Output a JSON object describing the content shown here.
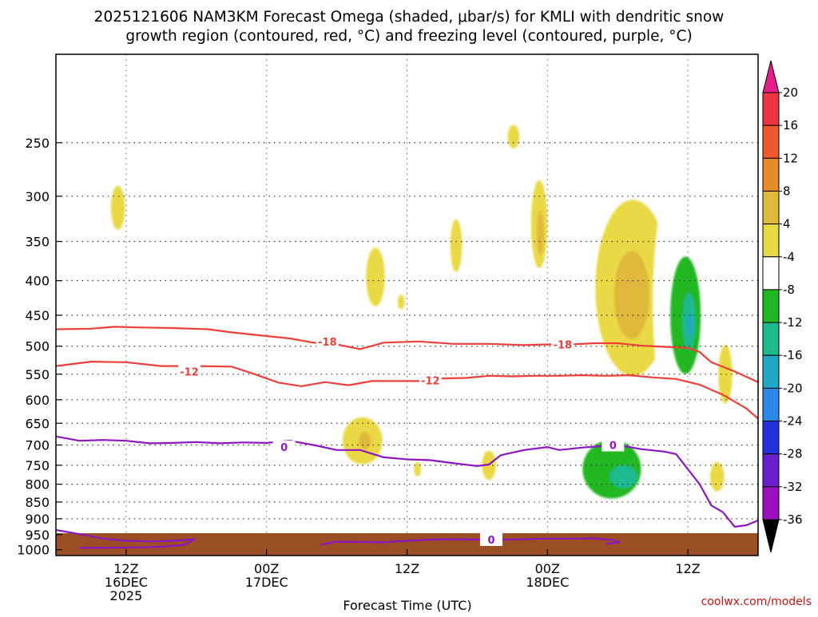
{
  "chart_data": {
    "type": "time-height filled contour",
    "title_lines": [
      "2025121606 NAM3KM Forecast Omega (shaded, μbar/s) for KMLI with dendritic snow",
      "growth region (contoured, red, °C) and freezing level (contoured, purple, °C)"
    ],
    "xlabel": "Forecast Time (UTC)",
    "credit": "coolwx.com/models",
    "x_axis": {
      "range_hours": [
        0,
        60
      ],
      "start": "2025-12-16 06Z",
      "ticks": [
        {
          "hour": 6,
          "lines": [
            "12Z",
            "16DEC",
            "2025"
          ]
        },
        {
          "hour": 18,
          "lines": [
            "00Z",
            "17DEC"
          ]
        },
        {
          "hour": 30,
          "lines": [
            "12Z"
          ]
        },
        {
          "hour": 42,
          "lines": [
            "00Z",
            "18DEC"
          ]
        },
        {
          "hour": 54,
          "lines": [
            "12Z"
          ]
        }
      ]
    },
    "y_axis": {
      "type": "pressure (log)",
      "range_hpa": [
        1020,
        185
      ],
      "ticks": [
        250,
        300,
        350,
        400,
        450,
        500,
        550,
        600,
        650,
        700,
        750,
        800,
        850,
        900,
        950,
        1000
      ]
    },
    "colorbar": {
      "levels": [
        20,
        16,
        12,
        8,
        4,
        -4,
        -8,
        -12,
        -16,
        -20,
        -24,
        -28,
        -32,
        -36
      ],
      "colors": [
        "#ee3344",
        "#ec5a2d",
        "#e88a25",
        "#e0b83a",
        "#e9d944",
        "#ffffff",
        "#22b822",
        "#1dba8e",
        "#22a8c7",
        "#2b88e6",
        "#2233dd",
        "#6a1fcc",
        "#9e0fbe",
        "#a2a2a2"
      ],
      "top_color": "#e41e8a",
      "bottom_color": "#000000"
    },
    "contours": {
      "dendritic_snow_growth": [
        {
          "label": "-12",
          "points": [
            [
              0,
              535
            ],
            [
              3,
              527
            ],
            [
              6,
              528
            ],
            [
              9,
              535
            ],
            [
              12,
              535
            ],
            [
              15,
              536
            ],
            [
              17,
              550
            ],
            [
              19,
              566
            ],
            [
              21,
              573
            ],
            [
              23,
              565
            ],
            [
              25,
              571
            ],
            [
              27,
              563
            ],
            [
              29,
              563
            ],
            [
              31,
              563
            ],
            [
              33,
              558
            ],
            [
              35,
              557
            ],
            [
              37,
              553
            ],
            [
              39,
              554
            ],
            [
              41,
              553
            ],
            [
              43,
              553
            ],
            [
              45,
              552
            ],
            [
              47,
              553
            ],
            [
              49,
              552
            ],
            [
              51,
              556
            ],
            [
              53,
              559
            ],
            [
              55,
              570
            ],
            [
              57,
              590
            ],
            [
              59,
              618
            ],
            [
              60,
              640
            ]
          ],
          "labels_at": [
            [
              11.4,
              545
            ],
            [
              32,
              562
            ]
          ]
        },
        {
          "label": "-18",
          "points": [
            [
              0,
              472
            ],
            [
              3,
              471
            ],
            [
              5,
              468
            ],
            [
              7,
              469
            ],
            [
              10,
              470
            ],
            [
              13,
              472
            ],
            [
              15,
              477
            ],
            [
              18,
              483
            ],
            [
              20,
              487
            ],
            [
              22,
              494
            ],
            [
              24,
              497
            ],
            [
              26,
              505
            ],
            [
              28,
              494
            ],
            [
              31,
              492
            ],
            [
              34,
              496
            ],
            [
              37,
              496
            ],
            [
              40,
              498
            ],
            [
              42,
              497
            ],
            [
              44,
              497
            ],
            [
              46,
              495
            ],
            [
              48,
              495
            ],
            [
              50,
              499
            ],
            [
              52,
              501
            ],
            [
              54,
              503
            ],
            [
              55,
              510
            ],
            [
              56,
              528
            ],
            [
              58,
              545
            ],
            [
              60,
              565
            ]
          ],
          "labels_at": [
            [
              23.2,
              492
            ],
            [
              43.3,
              497
            ]
          ]
        }
      ],
      "freezing_level": [
        {
          "label": "0",
          "points": [
            [
              0,
              680
            ],
            [
              2,
              690
            ],
            [
              4,
              688
            ],
            [
              6,
              690
            ],
            [
              8,
              696
            ],
            [
              10,
              695
            ],
            [
              12,
              693
            ],
            [
              14,
              696
            ],
            [
              16,
              694
            ],
            [
              18,
              695
            ],
            [
              20,
              690
            ],
            [
              22,
              700
            ],
            [
              24,
              712
            ],
            [
              26,
              712
            ],
            [
              28,
              730
            ],
            [
              30,
              735
            ],
            [
              32,
              737
            ],
            [
              34,
              745
            ],
            [
              36,
              752
            ],
            [
              37,
              748
            ],
            [
              38,
              725
            ],
            [
              40,
              712
            ],
            [
              42,
              705
            ],
            [
              43,
              712
            ],
            [
              45,
              706
            ],
            [
              47,
              702
            ],
            [
              48,
              700
            ],
            [
              50,
              710
            ],
            [
              52,
              716
            ],
            [
              53,
              722
            ],
            [
              54,
              760
            ],
            [
              55,
              800
            ],
            [
              56,
              860
            ],
            [
              57,
              880
            ],
            [
              58,
              925
            ],
            [
              59,
              920
            ],
            [
              60,
              905
            ]
          ],
          "labels_at": [
            [
              19.5,
              705
            ],
            [
              47.6,
              700
            ]
          ]
        },
        {
          "label": "0",
          "points": [
            [
              0,
              935
            ],
            [
              2,
              948
            ],
            [
              4,
              963
            ],
            [
              6,
              970
            ],
            [
              8,
              972
            ],
            [
              10,
              970
            ],
            [
              11.9,
              965
            ],
            [
              11,
              983
            ],
            [
              9,
              990
            ],
            [
              7,
              992
            ],
            [
              2,
              994
            ]
          ],
          "labels_at": []
        },
        {
          "label": "0",
          "points": [
            [
              22.6,
              983
            ],
            [
              24,
              973
            ],
            [
              26,
              974
            ],
            [
              28,
              975
            ],
            [
              30,
              970
            ],
            [
              32,
              966
            ],
            [
              34,
              965
            ],
            [
              36,
              966
            ],
            [
              38,
              967
            ],
            [
              40,
              965
            ],
            [
              42,
              963
            ],
            [
              44,
              963
            ],
            [
              46,
              962
            ],
            [
              47.7,
              968
            ],
            [
              48.2,
              975
            ],
            [
              47,
              980
            ]
          ],
          "labels_at": [
            [
              37.2,
              966
            ]
          ]
        }
      ]
    },
    "omega_regions": [
      {
        "value": 4,
        "center": [
          5.3,
          312
        ],
        "size": [
          0.6,
          0.15
        ]
      },
      {
        "value": -4,
        "center": [
          15.9,
          375
        ],
        "size": [
          0.4,
          0.1
        ]
      },
      {
        "value": -4,
        "center": [
          22.3,
          405
        ],
        "size": [
          0.4,
          0.07
        ]
      },
      {
        "value": 4,
        "center": [
          27.3,
          395
        ],
        "size": [
          0.8,
          0.2
        ]
      },
      {
        "value": 4,
        "center": [
          29.5,
          430
        ],
        "size": [
          0.3,
          0.05
        ]
      },
      {
        "value": 4,
        "center": [
          34.2,
          355
        ],
        "size": [
          0.5,
          0.18
        ]
      },
      {
        "value": 4,
        "center": [
          39.1,
          245
        ],
        "size": [
          0.5,
          0.08
        ]
      },
      {
        "value": -4,
        "center": [
          40.9,
          300
        ],
        "size": [
          0.5,
          0.12
        ]
      },
      {
        "value": 4,
        "center": [
          41.3,
          330
        ],
        "size": [
          0.7,
          0.3
        ]
      },
      {
        "value": 8,
        "center": [
          41.4,
          340
        ],
        "size": [
          0.3,
          0.15
        ]
      },
      {
        "value": 4,
        "center": [
          26.2,
          690
        ],
        "size": [
          1.7,
          0.16
        ]
      },
      {
        "value": 8,
        "center": [
          26.4,
          690
        ],
        "size": [
          0.5,
          0.06
        ]
      },
      {
        "value": -4,
        "center": [
          22.4,
          690
        ],
        "size": [
          0.4,
          0.12
        ]
      },
      {
        "value": 4,
        "center": [
          30.9,
          760
        ],
        "size": [
          0.3,
          0.05
        ]
      },
      {
        "value": 4,
        "center": [
          37.0,
          750
        ],
        "size": [
          0.6,
          0.1
        ]
      },
      {
        "value": -4,
        "center": [
          41.8,
          800
        ],
        "size": [
          0.5,
          0.2
        ]
      },
      {
        "value": -4,
        "center": [
          45.8,
          760
        ],
        "size": [
          4.4,
          0.35
        ]
      },
      {
        "value": -8,
        "center": [
          47.5,
          760
        ],
        "size": [
          2.5,
          0.2
        ]
      },
      {
        "value": -12,
        "center": [
          48.5,
          780
        ],
        "size": [
          1.2,
          0.08
        ]
      },
      {
        "value": 4,
        "center": [
          49.3,
          410
        ],
        "size": [
          3.2,
          0.6
        ]
      },
      {
        "value": 8,
        "center": [
          49.2,
          420
        ],
        "size": [
          1.5,
          0.3
        ]
      },
      {
        "value": -4,
        "center": [
          53.2,
          430
        ],
        "size": [
          2.2,
          0.9
        ]
      },
      {
        "value": -8,
        "center": [
          53.8,
          450
        ],
        "size": [
          1.3,
          0.4
        ]
      },
      {
        "value": -12,
        "center": [
          54.1,
          460
        ],
        "size": [
          0.6,
          0.2
        ]
      },
      {
        "value": -16,
        "center": [
          54.2,
          465
        ],
        "size": [
          0.25,
          0.08
        ]
      },
      {
        "value": 4,
        "center": [
          57.2,
          550
        ],
        "size": [
          0.6,
          0.2
        ]
      },
      {
        "value": -4,
        "center": [
          55.2,
          720
        ],
        "size": [
          0.8,
          0.15
        ]
      },
      {
        "value": 4,
        "center": [
          56.5,
          780
        ],
        "size": [
          0.6,
          0.1
        ]
      }
    ]
  }
}
